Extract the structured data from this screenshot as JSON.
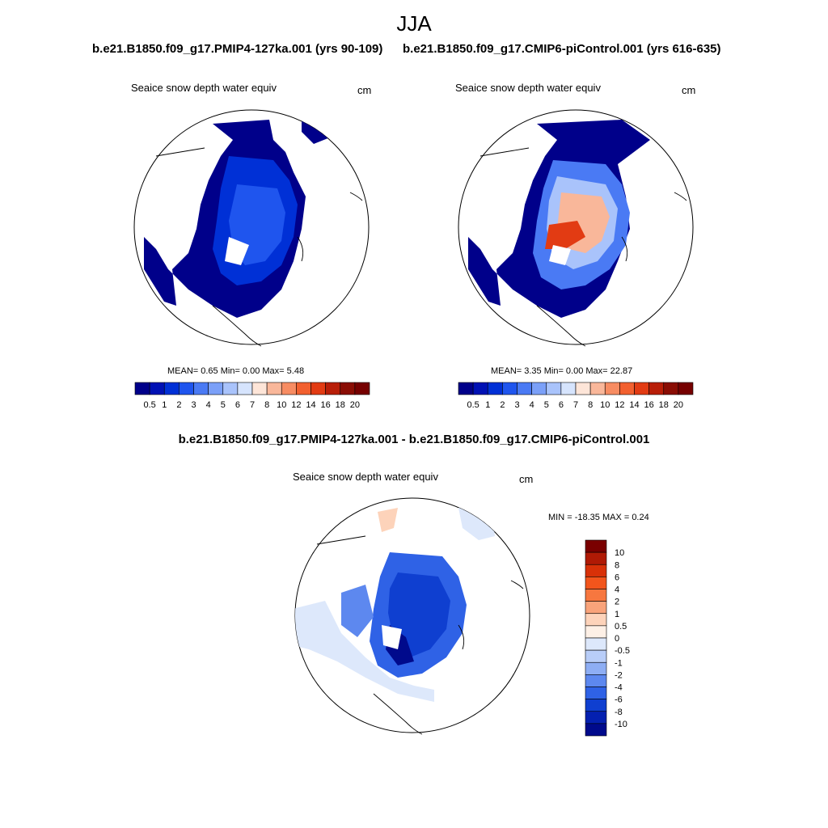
{
  "page": {
    "title": "JJA",
    "left_run": "b.e21.B1850.f09_g17.PMIP4-127ka.001 (yrs 90-109)",
    "right_run": "b.e21.B1850.f09_g17.CMIP6-piControl.001 (yrs 616-635)",
    "diff_title": "b.e21.B1850.f09_g17.PMIP4-127ka.001 - b.e21.B1850.f09_g17.CMIP6-piControl.001"
  },
  "chart_data": [
    {
      "type": "heatmap",
      "projection": "polar-stereographic-north",
      "variable": "Seaice snow depth water equiv",
      "units": "cm",
      "stats_text": "MEAN=   0.65  Min=   0.00  Max=   5.48",
      "stats": {
        "mean": 0.65,
        "min": 0.0,
        "max": 5.48
      },
      "colorbar": {
        "orientation": "horizontal",
        "levels": [
          "0.5",
          "1",
          "2",
          "3",
          "4",
          "5",
          "6",
          "7",
          "8",
          "10",
          "12",
          "14",
          "16",
          "18",
          "20"
        ],
        "colors": [
          "#00008a",
          "#0011b4",
          "#0030d6",
          "#1f55ee",
          "#4a7af4",
          "#7ba0f8",
          "#a9c3fb",
          "#d6e4fd",
          "#fde5d8",
          "#f9b79a",
          "#f78c62",
          "#f2602f",
          "#e23b13",
          "#b81e08",
          "#8a0d04",
          "#760000"
        ]
      }
    },
    {
      "type": "heatmap",
      "projection": "polar-stereographic-north",
      "variable": "Seaice snow depth water equiv",
      "units": "cm",
      "stats_text": "MEAN=   3.35  Min=   0.00  Max=  22.87",
      "stats": {
        "mean": 3.35,
        "min": 0.0,
        "max": 22.87
      },
      "colorbar": {
        "orientation": "horizontal",
        "levels": [
          "0.5",
          "1",
          "2",
          "3",
          "4",
          "5",
          "6",
          "7",
          "8",
          "10",
          "12",
          "14",
          "16",
          "18",
          "20"
        ],
        "colors": [
          "#00008a",
          "#0011b4",
          "#0030d6",
          "#1f55ee",
          "#4a7af4",
          "#7ba0f8",
          "#a9c3fb",
          "#d6e4fd",
          "#fde5d8",
          "#f9b79a",
          "#f78c62",
          "#f2602f",
          "#e23b13",
          "#b81e08",
          "#8a0d04",
          "#760000"
        ]
      }
    },
    {
      "type": "heatmap",
      "projection": "polar-stereographic-north",
      "variable": "Seaice snow depth water equiv",
      "units": "cm",
      "stats_text": "MIN = -18.35 MAX =   0.24",
      "stats": {
        "min": -18.35,
        "max": 0.24
      },
      "colorbar": {
        "orientation": "vertical",
        "levels": [
          "10",
          "8",
          "6",
          "4",
          "2",
          "1",
          "0.5",
          "0",
          "-0.5",
          "-1",
          "-2",
          "-4",
          "-6",
          "-8",
          "-10"
        ],
        "colors": [
          "#7a0000",
          "#b01a05",
          "#d83108",
          "#f2551c",
          "#f7773f",
          "#f9a37a",
          "#fdd3ba",
          "#fdf0e6",
          "#dde8fb",
          "#b8cdf8",
          "#8eaef4",
          "#5d88ef",
          "#2f62e6",
          "#0f3fd0",
          "#0420b0",
          "#000a8c"
        ]
      }
    }
  ]
}
